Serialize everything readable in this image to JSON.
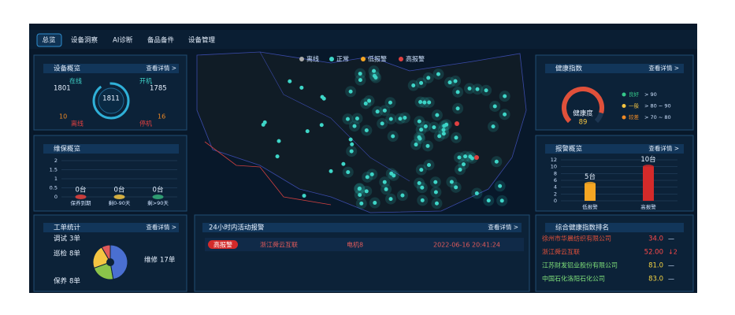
{
  "nav": [
    "总览",
    "设备洞察",
    "AI诊断",
    "备品备件",
    "设备管理"
  ],
  "map_legend": [
    "离线",
    "正常",
    "低报警",
    "高报警"
  ],
  "device_overview": {
    "title": "设备概览",
    "link": "查看详情 >",
    "online_label": "在线",
    "online": 1801,
    "on_label": "开机",
    "on": 1785,
    "total": 1811,
    "offline": 10,
    "offline_label": "离线",
    "stopped": 16,
    "stopped_label": "停机"
  },
  "maintenance": {
    "title": "维保概览",
    "chart": {
      "type": "bar",
      "categories": [
        "保养到期",
        "剩0-90天",
        "剩>90天"
      ],
      "values": [
        0,
        0,
        0
      ],
      "value_labels": [
        "0台",
        "0台",
        "0台"
      ],
      "colors": [
        "#e8413c",
        "#f5c542",
        "#35b07a"
      ],
      "ylim": [
        0,
        2
      ],
      "yticks": [
        0,
        0.5,
        1,
        1.5,
        2
      ]
    }
  },
  "work_orders": {
    "title": "工单统计",
    "link": "查看详情 >",
    "chart": {
      "type": "pie",
      "categories": [
        "调试",
        "巡检",
        "保养",
        "维修"
      ],
      "values": [
        3,
        8,
        8,
        17
      ],
      "value_labels": [
        "3单",
        "8单",
        "8单",
        "17单"
      ],
      "colors": [
        "#e05a5a",
        "#f4c542",
        "#8bc34a",
        "#4a6fd1"
      ]
    }
  },
  "alarms": {
    "title": "24小时内活动报警",
    "link": "查看详情 >",
    "rows": [
      {
        "level": "高报警",
        "company": "浙江舜云互联",
        "device": "电机8",
        "time": "2022-06-16 20:41:24"
      }
    ]
  },
  "health": {
    "title": "健康指数",
    "link": "查看详情 >",
    "gauge": {
      "label": "健康度",
      "value": 89
    },
    "legend": [
      {
        "name": "良好",
        "range": "> 90",
        "color": "#35c98a"
      },
      {
        "name": "一般",
        "range": "> 80 ~ 90",
        "color": "#f5c542"
      },
      {
        "name": "较差",
        "range": "> 70 ~ 80",
        "color": "#f08a24"
      }
    ]
  },
  "alarm_overview": {
    "title": "报警概览",
    "link": "查看详情 >",
    "chart": {
      "type": "bar",
      "categories": [
        "低报警",
        "高报警"
      ],
      "values": [
        5,
        10
      ],
      "value_labels": [
        "5台",
        "10台"
      ],
      "colors": [
        "#f5a623",
        "#d42a2a"
      ],
      "ylim": [
        0,
        12
      ],
      "yticks": [
        0,
        2,
        4,
        6,
        8,
        10,
        12
      ]
    }
  },
  "ranking": {
    "title": "综合健康指数排名",
    "rows": [
      {
        "name": "徐州市华晨纺织有限公司",
        "score": "34.0",
        "trend": "—"
      },
      {
        "name": "浙江舜云互联",
        "score": "52.00",
        "trend": "↓2"
      },
      {
        "name": "江苏财发铝业股份有限公司",
        "score": "81.0",
        "trend": "—"
      },
      {
        "name": "中国石化洛阳石化公司",
        "score": "83.0",
        "trend": "—"
      }
    ]
  }
}
